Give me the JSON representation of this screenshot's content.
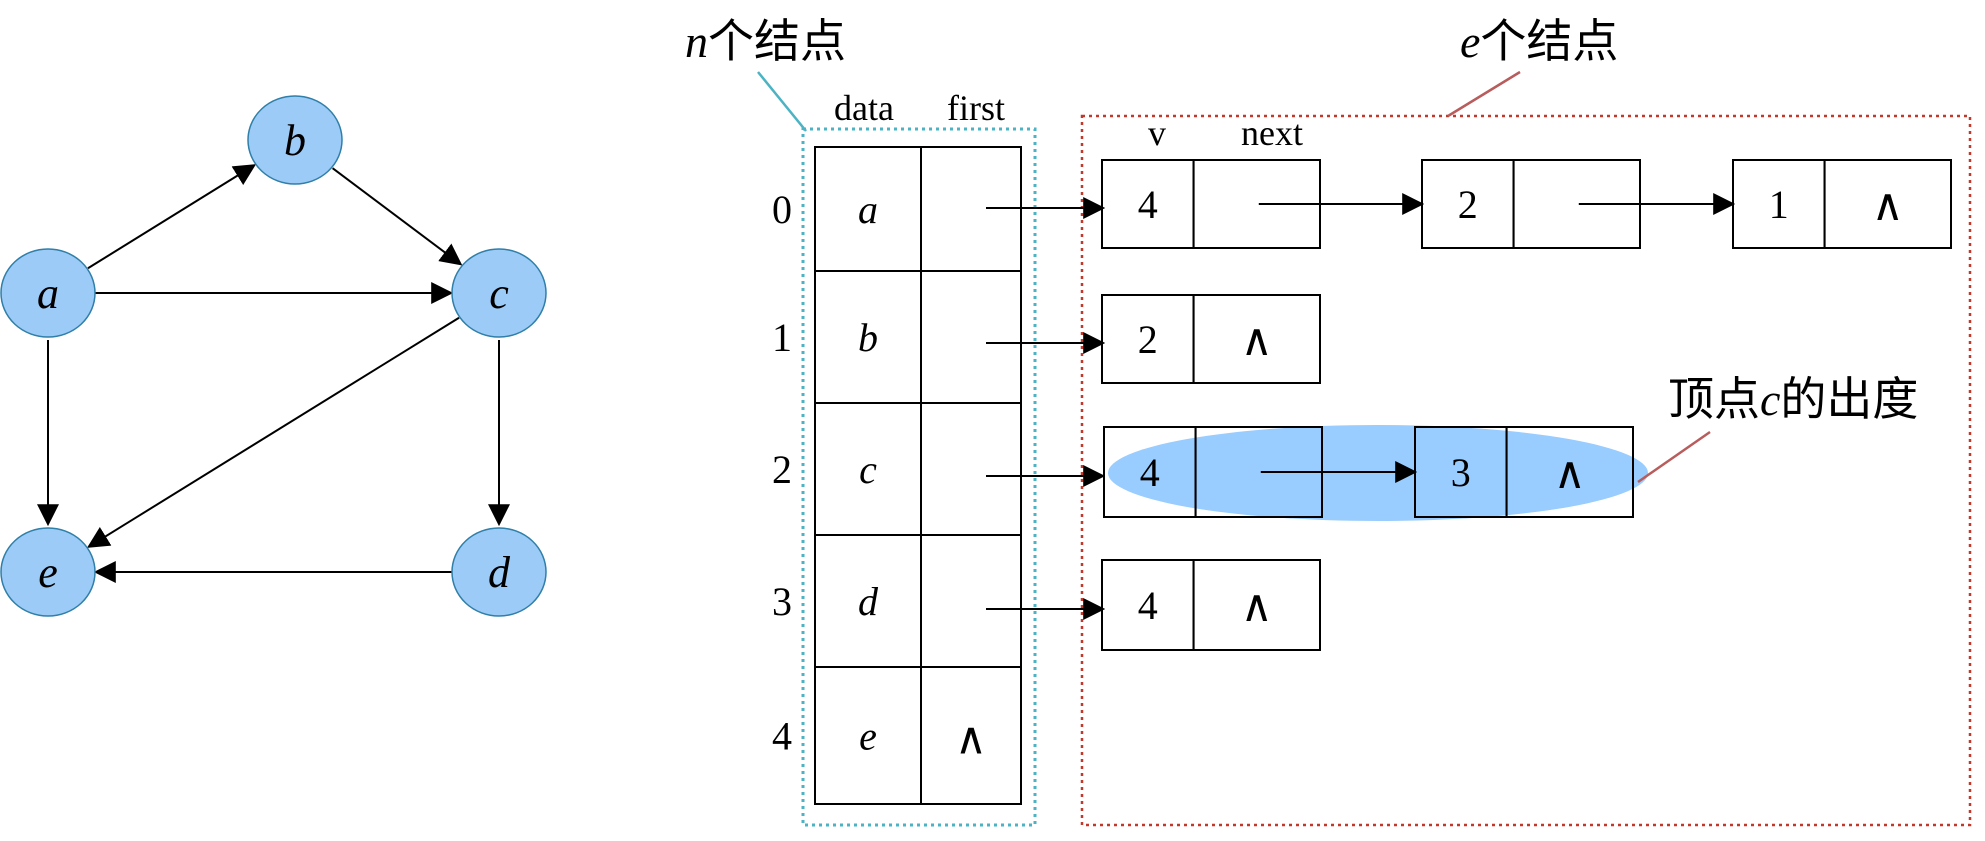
{
  "graph": {
    "nodes": [
      {
        "id": "a",
        "label": "a"
      },
      {
        "id": "b",
        "label": "b"
      },
      {
        "id": "c",
        "label": "c"
      },
      {
        "id": "d",
        "label": "d"
      },
      {
        "id": "e",
        "label": "e"
      }
    ],
    "edges": [
      [
        "a",
        "b"
      ],
      [
        "b",
        "c"
      ],
      [
        "a",
        "c"
      ],
      [
        "a",
        "e"
      ],
      [
        "c",
        "e"
      ],
      [
        "c",
        "d"
      ],
      [
        "d",
        "e"
      ]
    ]
  },
  "labels": {
    "n_nodes": {
      "var": "n",
      "text": "个结点"
    },
    "e_nodes": {
      "var": "e",
      "text": "个结点"
    },
    "outdegree": {
      "prefix": "顶点",
      "var": "c",
      "suffix": "的出度"
    },
    "col_data": "data",
    "col_first": "first",
    "col_v": "v",
    "col_next": "next",
    "null_symbol": "∧"
  },
  "vertex_table": [
    {
      "index": "0",
      "data": "a",
      "first_null": false
    },
    {
      "index": "1",
      "data": "b",
      "first_null": false
    },
    {
      "index": "2",
      "data": "c",
      "first_null": false
    },
    {
      "index": "3",
      "data": "d",
      "first_null": false
    },
    {
      "index": "4",
      "data": "e",
      "first_null": true
    }
  ],
  "edge_lists": [
    [
      {
        "v": "4",
        "next_null": false
      },
      {
        "v": "2",
        "next_null": false
      },
      {
        "v": "1",
        "next_null": true
      }
    ],
    [
      {
        "v": "2",
        "next_null": true
      }
    ],
    [
      {
        "v": "4",
        "next_null": false
      },
      {
        "v": "3",
        "next_null": true
      }
    ],
    [
      {
        "v": "4",
        "next_null": true
      }
    ],
    []
  ],
  "colors": {
    "node_fill": "#9ccbf7",
    "node_stroke": "#2f7fa8",
    "highlight_fill": "#99ccff",
    "vertex_box_border": "#4bb3c3",
    "edge_box_border": "#c0392b",
    "callout_line": "#b85c5c"
  }
}
